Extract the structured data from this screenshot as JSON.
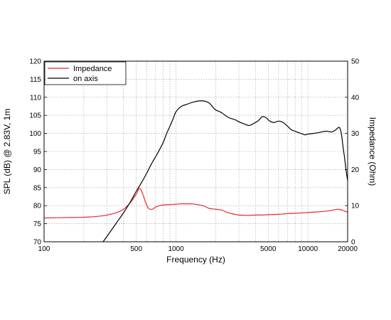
{
  "chart_data": {
    "type": "line",
    "xlabel": "Frequency (Hz)",
    "ylabel_left": "SPL (dB) @ 2.83V, 1m",
    "ylabel_right": "Impedance (Ohm)",
    "x_scale": "log",
    "xlim": [
      100,
      20000
    ],
    "ylim_left": [
      70,
      120
    ],
    "ylim_right": [
      0,
      50
    ],
    "grid": true,
    "legend_position": "top-left",
    "x_tick_labels": [
      "100",
      "500",
      "1000",
      "5000",
      "10000",
      "20000"
    ],
    "x_tick_values": [
      100,
      500,
      1000,
      5000,
      10000,
      20000
    ],
    "y_left_ticks": [
      70,
      75,
      80,
      85,
      90,
      95,
      100,
      105,
      110,
      115,
      120
    ],
    "y_right_ticks": [
      0,
      10,
      20,
      30,
      40,
      50
    ],
    "series": [
      {
        "name": "Impedance",
        "axis": "right",
        "color": "#e8282b",
        "x": [
          100,
          150,
          200,
          250,
          300,
          350,
          400,
          450,
          500,
          530,
          560,
          590,
          620,
          660,
          700,
          750,
          800,
          900,
          1000,
          1100,
          1200,
          1300,
          1400,
          1500,
          1600,
          1700,
          1800,
          2000,
          2200,
          2500,
          2800,
          3000,
          3500,
          4000,
          4500,
          5000,
          6000,
          7000,
          8000,
          10000,
          12000,
          14000,
          16000,
          17000,
          18000,
          19000,
          20000
        ],
        "y": [
          6.6,
          6.7,
          6.8,
          7.0,
          7.4,
          8.0,
          9.0,
          10.8,
          13.2,
          14.8,
          13.2,
          10.8,
          9.2,
          9.0,
          9.6,
          10.0,
          10.2,
          10.3,
          10.4,
          10.5,
          10.5,
          10.5,
          10.4,
          10.2,
          10.0,
          9.6,
          9.2,
          9.0,
          8.8,
          8.0,
          7.6,
          7.4,
          7.3,
          7.4,
          7.4,
          7.5,
          7.6,
          7.8,
          7.9,
          8.1,
          8.3,
          8.5,
          8.9,
          9.0,
          8.8,
          8.5,
          8.2
        ]
      },
      {
        "name": "on axis",
        "axis": "left",
        "color": "#000000",
        "x": [
          280,
          300,
          350,
          400,
          450,
          500,
          550,
          600,
          650,
          700,
          750,
          800,
          850,
          900,
          950,
          1000,
          1100,
          1200,
          1300,
          1400,
          1500,
          1600,
          1700,
          1800,
          1900,
          2000,
          2200,
          2500,
          2800,
          3000,
          3300,
          3600,
          3900,
          4200,
          4500,
          4800,
          5100,
          5500,
          6000,
          6500,
          7000,
          7500,
          8000,
          8500,
          9000,
          9500,
          10000,
          11000,
          12000,
          13000,
          14000,
          15000,
          16000,
          17000,
          17500,
          18000,
          18500,
          19000,
          19500,
          20000
        ],
        "y": [
          70.0,
          71.5,
          75.0,
          78.0,
          81.0,
          84.0,
          86.5,
          89.0,
          91.5,
          93.5,
          95.5,
          97.5,
          100.0,
          102.0,
          104.0,
          106.0,
          107.5,
          108.0,
          108.5,
          108.8,
          109.0,
          109.0,
          108.8,
          108.3,
          107.3,
          106.5,
          105.8,
          104.4,
          103.8,
          103.2,
          102.6,
          102.2,
          102.8,
          103.5,
          104.6,
          104.4,
          103.5,
          103.0,
          103.4,
          103.0,
          102.0,
          101.0,
          100.6,
          100.2,
          99.9,
          99.6,
          99.8,
          100.0,
          100.2,
          100.5,
          100.6,
          100.4,
          100.8,
          101.6,
          101.4,
          99.5,
          96.0,
          93.0,
          89.5,
          87.0
        ]
      }
    ]
  }
}
